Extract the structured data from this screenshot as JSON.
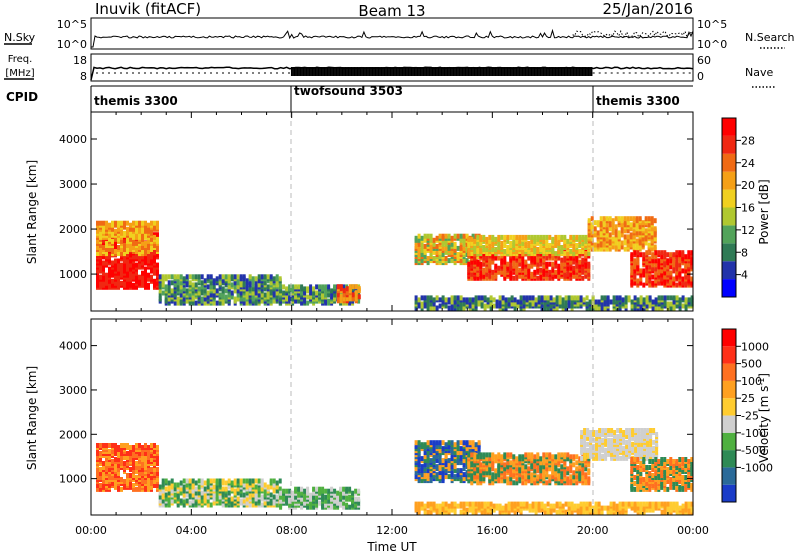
{
  "header": {
    "station": "Inuvik (fitACF)",
    "beam": "Beam 13",
    "date": "25/Jan/2016"
  },
  "nsky_panel": {
    "left_label": "N.Sky",
    "left_ticks": [
      "10^5",
      "10^0"
    ],
    "right_ticks": [
      "10^5",
      "10^0"
    ],
    "right_label": "N.Search"
  },
  "freq_panel": {
    "label_top": "Freq.",
    "label_bottom": "[MHz]",
    "left_ticks": [
      "18",
      "8"
    ],
    "right_ticks": [
      "60",
      "0"
    ],
    "right_label": "Nave"
  },
  "cpid_panel": {
    "label": "CPID",
    "modes": [
      {
        "name": "themis 3300",
        "start_hour": 0,
        "end_hour": 8
      },
      {
        "name": "twofsound 3503",
        "start_hour": 8,
        "end_hour": 20
      },
      {
        "name": "themis 3300",
        "start_hour": 20,
        "end_hour": 24
      }
    ]
  },
  "time_axis": {
    "label": "Time UT",
    "ticks": [
      "00:00",
      "04:00",
      "08:00",
      "12:00",
      "16:00",
      "20:00",
      "00:00"
    ]
  },
  "chart_data": [
    {
      "type": "heatmap",
      "name": "power_panel",
      "ylabel": "Slant Range [km]",
      "yticks": [
        "1000",
        "2000",
        "3000",
        "4000"
      ],
      "xlim_hours": [
        0,
        24
      ],
      "ylim_km": [
        180,
        4600
      ],
      "colorbar": {
        "label": "Power [dB]",
        "ticks": [
          "4",
          "8",
          "12",
          "16",
          "20",
          "24",
          "28"
        ],
        "colors": [
          "#0000ff",
          "#2233aa",
          "#2f7a55",
          "#52a35a",
          "#b0c830",
          "#f0d020",
          "#f5a017",
          "#f06a14",
          "#f02812",
          "#ff0000"
        ]
      },
      "blocks": [
        {
          "x0": 0.2,
          "x1": 2.7,
          "y0": 650,
          "y1": 1850,
          "c": [
            8,
            9
          ]
        },
        {
          "x0": 0.2,
          "x1": 2.7,
          "y0": 1400,
          "y1": 2100,
          "c": [
            5,
            6,
            7
          ]
        },
        {
          "x0": 2.7,
          "x1": 7.5,
          "y0": 300,
          "y1": 900,
          "c": [
            1,
            2,
            3,
            4
          ]
        },
        {
          "x0": 7.5,
          "x1": 10.7,
          "y0": 300,
          "y1": 700,
          "c": [
            1,
            2,
            3,
            4
          ]
        },
        {
          "x0": 9.8,
          "x1": 10.7,
          "y0": 350,
          "y1": 700,
          "c": [
            6,
            7,
            8
          ]
        },
        {
          "x0": 12.9,
          "x1": 15.5,
          "y0": 1200,
          "y1": 1800,
          "c": [
            3,
            4,
            5,
            6,
            7
          ]
        },
        {
          "x0": 15.0,
          "x1": 19.8,
          "y0": 850,
          "y1": 1450,
          "c": [
            7,
            8,
            9
          ]
        },
        {
          "x0": 15.0,
          "x1": 19.8,
          "y0": 1400,
          "y1": 1800,
          "c": [
            4,
            5,
            6
          ]
        },
        {
          "x0": 19.8,
          "x1": 22.5,
          "y0": 1500,
          "y1": 2200,
          "c": [
            5,
            6,
            7
          ]
        },
        {
          "x0": 21.5,
          "x1": 24.0,
          "y0": 700,
          "y1": 1450,
          "c": [
            7,
            8,
            9
          ]
        },
        {
          "x0": 12.9,
          "x1": 24.0,
          "y0": 190,
          "y1": 450,
          "c": [
            1,
            2,
            4
          ]
        }
      ]
    },
    {
      "type": "heatmap",
      "name": "velocity_panel",
      "ylabel": "Slant Range [km]",
      "yticks": [
        "1000",
        "2000",
        "3000",
        "4000"
      ],
      "xlim_hours": [
        0,
        24
      ],
      "ylim_km": [
        180,
        4600
      ],
      "colorbar": {
        "label": "Velocity [m s^-1]",
        "ticks": [
          "1000",
          "500",
          "100",
          "25",
          "-25",
          "-100",
          "-500",
          "-1000"
        ],
        "colors": [
          "#1a3cc8",
          "#2a6a99",
          "#2e8a55",
          "#4fb040",
          "#cfcfcf",
          "#ffcc30",
          "#ffa020",
          "#ff7020",
          "#ff3018",
          "#ff0000"
        ]
      },
      "blocks": [
        {
          "x0": 0.2,
          "x1": 2.7,
          "y0": 700,
          "y1": 1700,
          "c": [
            6,
            7,
            8
          ]
        },
        {
          "x0": 2.7,
          "x1": 7.5,
          "y0": 350,
          "y1": 900,
          "c": [
            2,
            3,
            4,
            5
          ]
        },
        {
          "x0": 7.5,
          "x1": 10.7,
          "y0": 300,
          "y1": 750,
          "c": [
            2,
            3,
            4
          ]
        },
        {
          "x0": 12.9,
          "x1": 15.5,
          "y0": 900,
          "y1": 1800,
          "c": [
            0,
            1,
            2,
            6
          ]
        },
        {
          "x0": 15.0,
          "x1": 19.8,
          "y0": 850,
          "y1": 1500,
          "c": [
            2,
            6,
            7
          ]
        },
        {
          "x0": 19.5,
          "x1": 22.5,
          "y0": 1400,
          "y1": 2050,
          "c": [
            4,
            4,
            5
          ]
        },
        {
          "x0": 21.5,
          "x1": 24.0,
          "y0": 700,
          "y1": 1400,
          "c": [
            2,
            6,
            7
          ]
        },
        {
          "x0": 12.9,
          "x1": 24.0,
          "y0": 190,
          "y1": 400,
          "c": [
            5,
            6
          ]
        }
      ]
    }
  ]
}
